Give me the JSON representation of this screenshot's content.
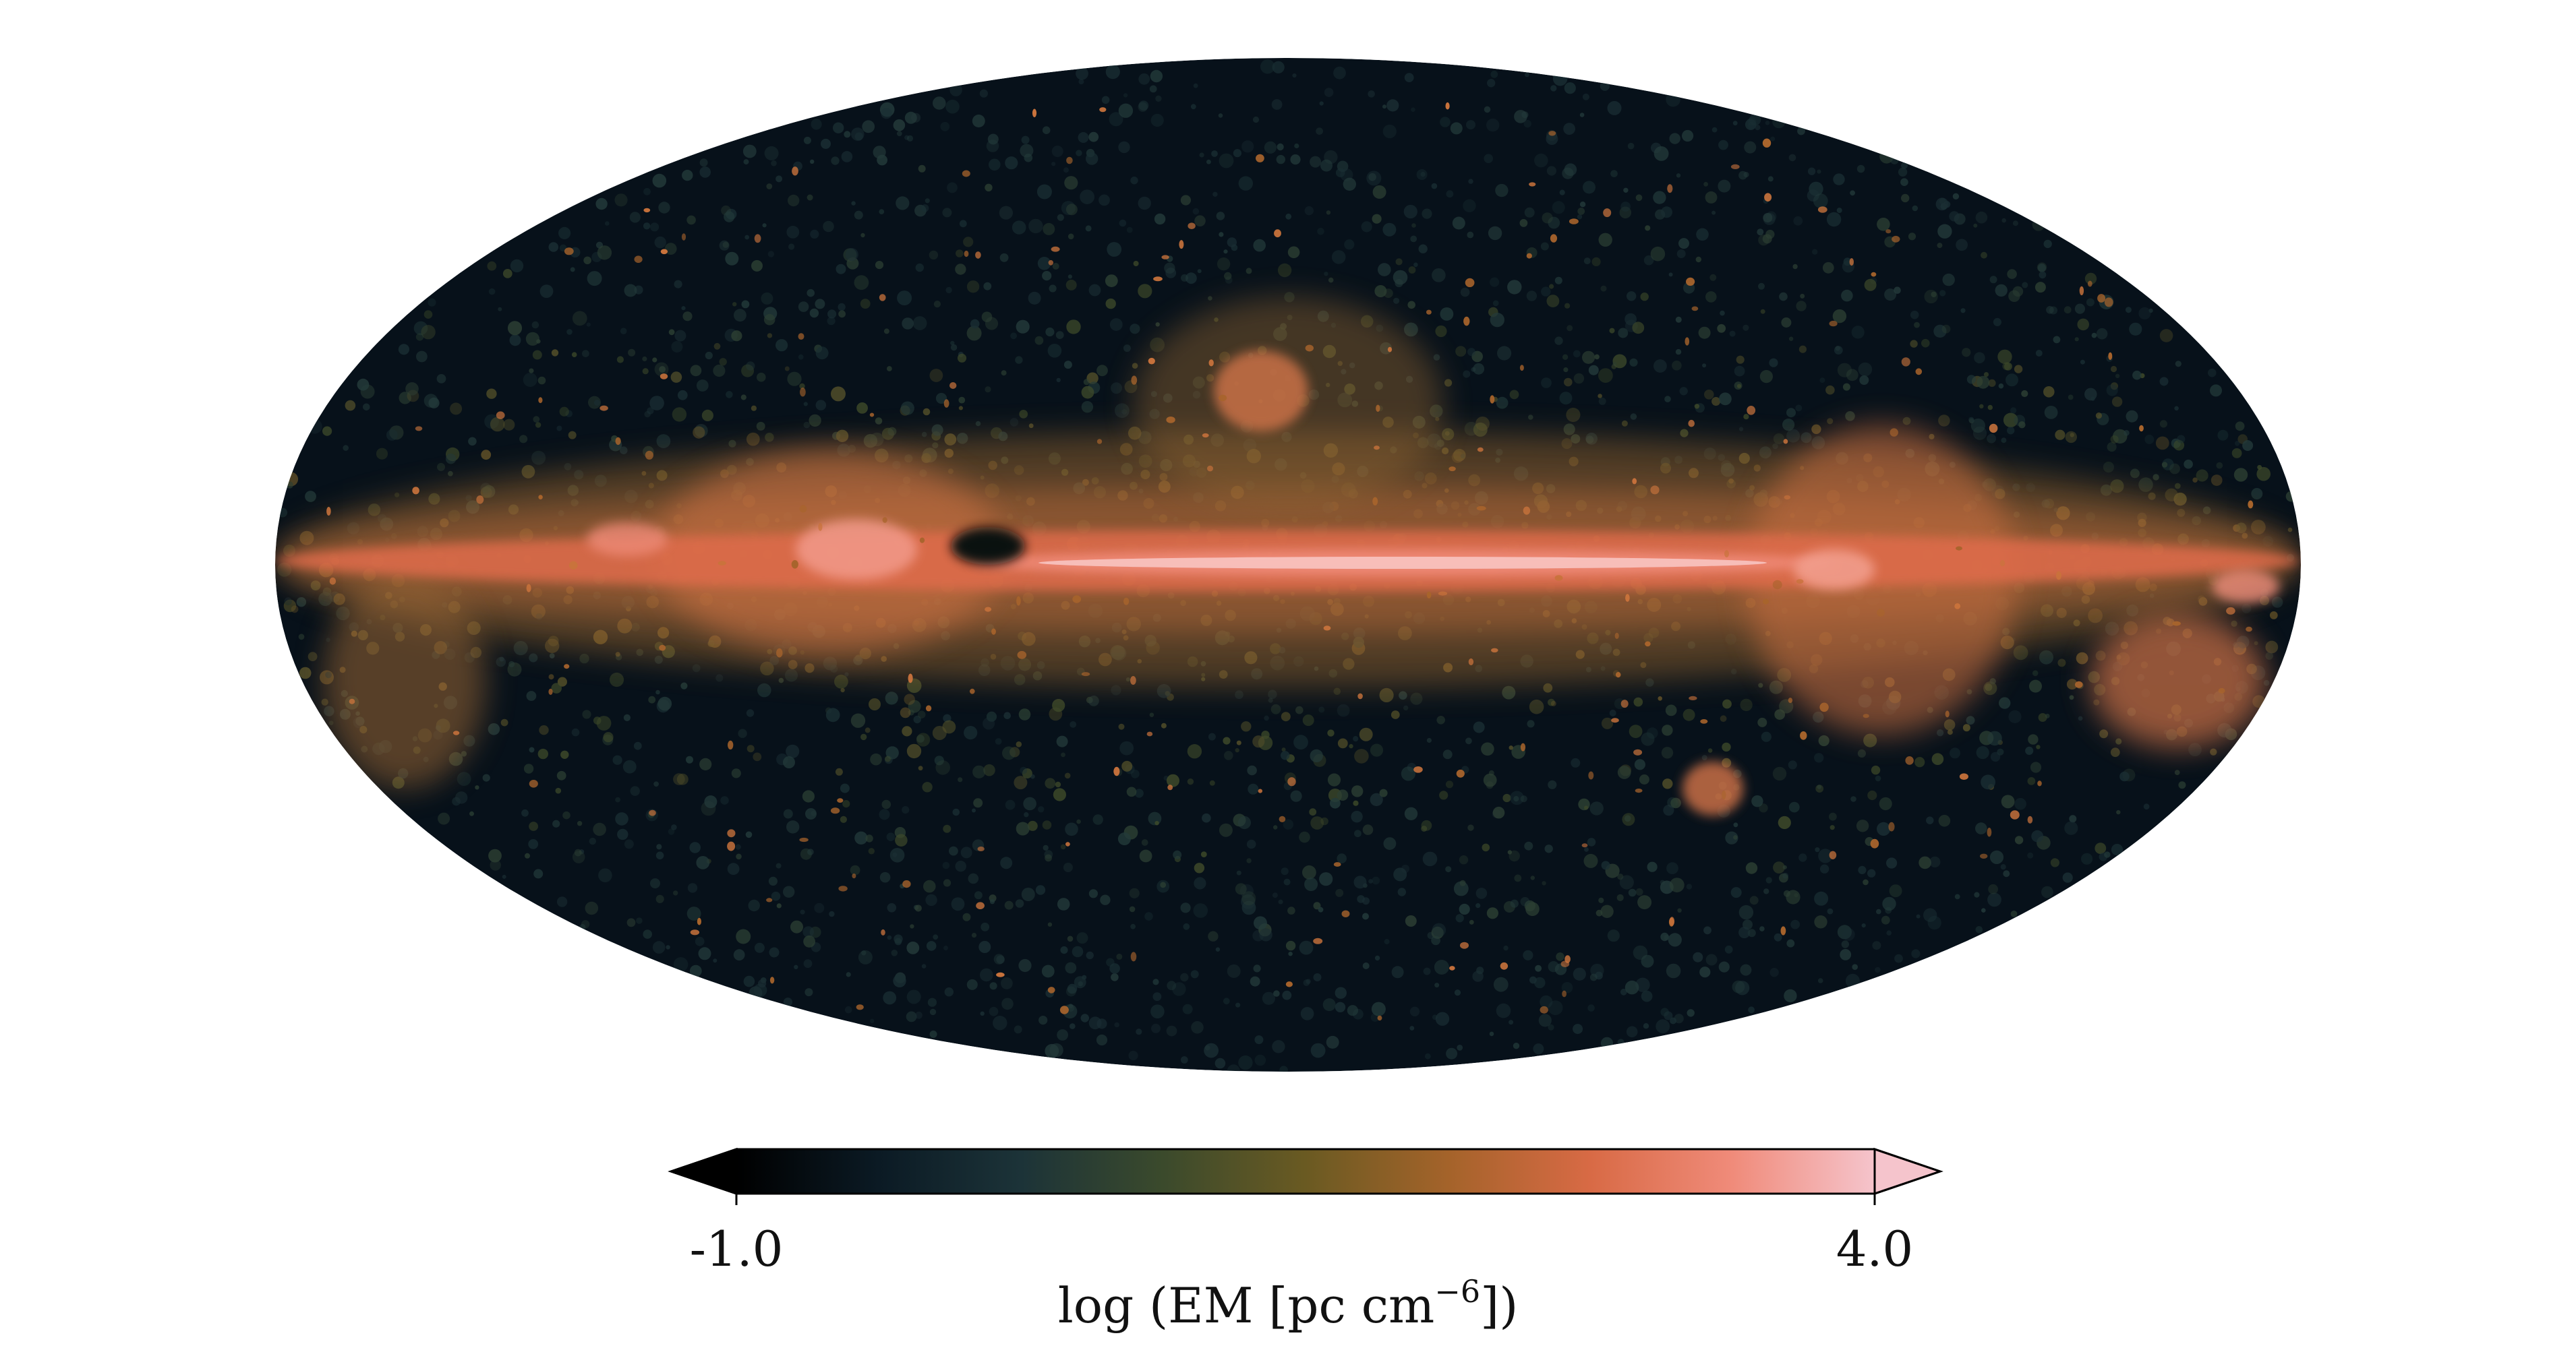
{
  "colorbar": {
    "min_label": "-1.0",
    "max_label": "4.0",
    "label": {
      "prefix": "log (EM  [pc cm",
      "exponent": "−6",
      "suffix": "])"
    },
    "extend": "both",
    "colors": [
      "#000000",
      "#0b1a24",
      "#1c3338",
      "#3b4a2c",
      "#6a5a22",
      "#a4632a",
      "#d86a45",
      "#f08b7a",
      "#f5c4cc"
    ]
  },
  "map": {
    "projection": "Mollweide",
    "background": "#0a1418",
    "plane_color": "#e86f52",
    "core_color": "#f9b9b6"
  }
}
